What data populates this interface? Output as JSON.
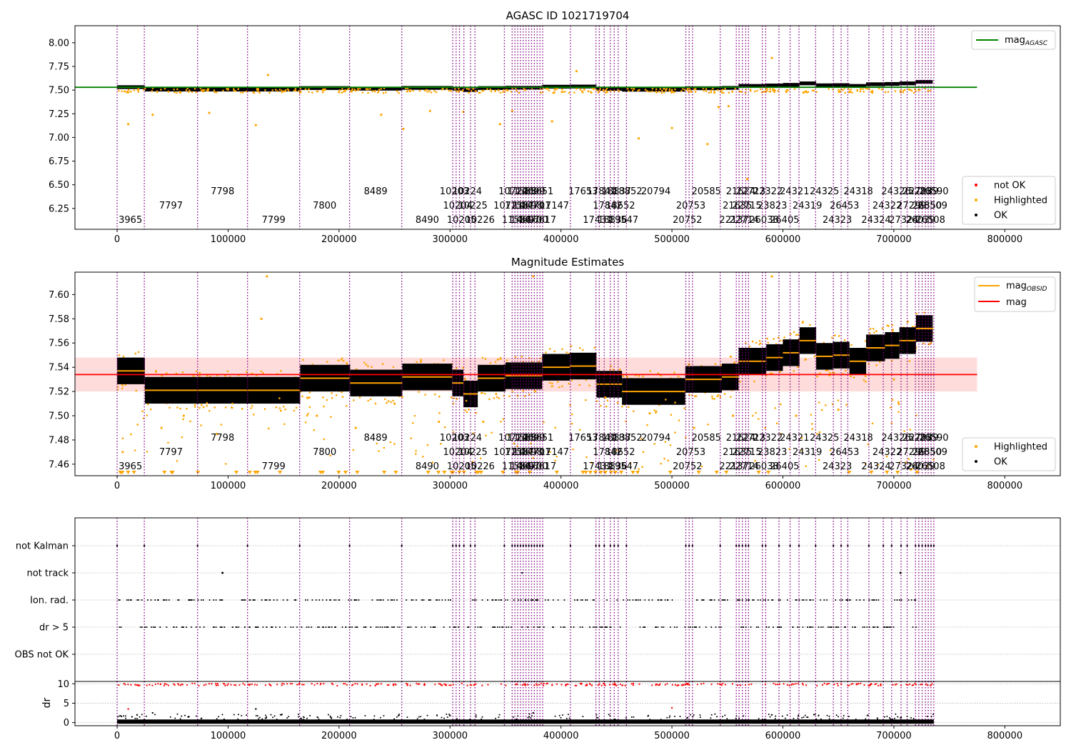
{
  "figure": {
    "chart_data": [
      {
        "type": "scatter",
        "title": "AGASC ID 1021719704",
        "xlabel": "",
        "ylabel": "",
        "xlim": [
          -38000,
          850000
        ],
        "ylim": [
          6.03,
          8.18
        ],
        "xticks": [
          0,
          100000,
          200000,
          300000,
          400000,
          500000,
          600000,
          700000,
          800000
        ],
        "xtick_labels": [
          "0",
          "100000",
          "200000",
          "300000",
          "400000",
          "500000",
          "600000",
          "700000",
          "800000"
        ],
        "yticks": [
          6.25,
          6.5,
          6.75,
          7.0,
          7.25,
          7.5,
          7.75,
          8.0
        ],
        "ytick_labels": [
          "6.25",
          "6.50",
          "6.75",
          "7.00",
          "7.25",
          "7.50",
          "7.75",
          "8.00"
        ],
        "reference_line": {
          "name": "mag_AGASC",
          "y": 7.53,
          "color": "#008000",
          "x_range": [
            -38000,
            775000
          ]
        },
        "series": [
          {
            "name": "not OK",
            "color": "#ff0000",
            "x": [],
            "y": []
          },
          {
            "name": "Highlighted",
            "color": "#ffa500",
            "x": [
              10000,
              32000,
              83000,
              125000,
              136000,
              238000,
              258000,
              282000,
              312000,
              345000,
              356000,
              392000,
              414000,
              470000,
              500000,
              532000,
              542000,
              551000,
              568000,
              590000
            ],
            "y": [
              7.14,
              7.24,
              7.26,
              7.13,
              7.66,
              7.24,
              7.09,
              7.28,
              7.27,
              7.14,
              7.28,
              7.17,
              7.7,
              6.99,
              7.1,
              6.93,
              7.32,
              7.33,
              6.56,
              7.84
            ]
          },
          {
            "name": "OK",
            "color": "#000000",
            "x": [],
            "y": []
          }
        ],
        "legend": {
          "placement": "upper right",
          "items": [
            "mag_AGASC"
          ]
        },
        "legend2": {
          "placement": "lower right",
          "items": [
            "not OK",
            "Highlighted",
            "OK"
          ]
        }
      },
      {
        "type": "scatter",
        "title": "Magnitude Estimates",
        "xlabel": "",
        "ylabel": "",
        "xlim": [
          -38000,
          850000
        ],
        "ylim": [
          7.4505,
          7.6185
        ],
        "xticks": [
          0,
          100000,
          200000,
          300000,
          400000,
          500000,
          600000,
          700000,
          800000
        ],
        "xtick_labels": [
          "0",
          "100000",
          "200000",
          "300000",
          "400000",
          "500000",
          "600000",
          "700000",
          "800000"
        ],
        "yticks": [
          7.46,
          7.48,
          7.5,
          7.52,
          7.54,
          7.56,
          7.58,
          7.6
        ],
        "ytick_labels": [
          "7.46",
          "7.48",
          "7.50",
          "7.52",
          "7.54",
          "7.56",
          "7.58",
          "7.60"
        ],
        "mag_line": {
          "name": "mag",
          "y": 7.534,
          "band": [
            7.52,
            7.548
          ],
          "color": "#ff0000",
          "x_range": [
            -38000,
            775000
          ]
        },
        "mag_obsid": {
          "name": "mag_OBSID",
          "color": "#ffa500",
          "segments": [
            {
              "x0": 0,
              "x1": 25000,
              "y": 7.537
            },
            {
              "x0": 25000,
              "x1": 73000,
              "y": 7.521
            },
            {
              "x0": 73000,
              "x1": 118000,
              "y": 7.521
            },
            {
              "x0": 118000,
              "x1": 165000,
              "y": 7.521
            },
            {
              "x0": 165000,
              "x1": 210000,
              "y": 7.531
            },
            {
              "x0": 210000,
              "x1": 257000,
              "y": 7.527
            },
            {
              "x0": 257000,
              "x1": 302000,
              "y": 7.532
            },
            {
              "x0": 302000,
              "x1": 312000,
              "y": 7.527
            },
            {
              "x0": 312000,
              "x1": 325000,
              "y": 7.518
            },
            {
              "x0": 325000,
              "x1": 350000,
              "y": 7.531
            },
            {
              "x0": 350000,
              "x1": 383000,
              "y": 7.533
            },
            {
              "x0": 383000,
              "x1": 408000,
              "y": 7.54
            },
            {
              "x0": 408000,
              "x1": 432000,
              "y": 7.541
            },
            {
              "x0": 432000,
              "x1": 455000,
              "y": 7.526
            },
            {
              "x0": 455000,
              "x1": 512000,
              "y": 7.52
            },
            {
              "x0": 512000,
              "x1": 545000,
              "y": 7.53
            },
            {
              "x0": 545000,
              "x1": 560000,
              "y": 7.532
            },
            {
              "x0": 560000,
              "x1": 585000,
              "y": 7.545
            },
            {
              "x0": 585000,
              "x1": 600000,
              "y": 7.548
            },
            {
              "x0": 600000,
              "x1": 615000,
              "y": 7.552
            },
            {
              "x0": 615000,
              "x1": 630000,
              "y": 7.562
            },
            {
              "x0": 630000,
              "x1": 645000,
              "y": 7.549
            },
            {
              "x0": 645000,
              "x1": 660000,
              "y": 7.55
            },
            {
              "x0": 660000,
              "x1": 675000,
              "y": 7.545
            },
            {
              "x0": 675000,
              "x1": 692000,
              "y": 7.556
            },
            {
              "x0": 692000,
              "x1": 705000,
              "y": 7.558
            },
            {
              "x0": 705000,
              "x1": 720000,
              "y": 7.562
            },
            {
              "x0": 720000,
              "x1": 735000,
              "y": 7.572
            }
          ]
        },
        "series": [
          {
            "name": "Highlighted",
            "color": "#ffa500",
            "x": [
              5000,
              40000,
              60000,
              90000,
              130000,
              135000,
              180000,
              215000,
              250000,
              290000,
              330000,
              375000,
              440000,
              480000,
              520000,
              555000,
              590000,
              612000,
              650000,
              700000
            ],
            "y": [
              7.47,
              7.49,
              7.5,
              7.485,
              7.58,
              7.615,
              7.5,
              7.49,
              7.51,
              7.495,
              7.495,
              7.615,
              7.515,
              7.502,
              7.49,
              7.5,
              7.615,
              7.5,
              7.505,
              7.53
            ]
          },
          {
            "name": "OK",
            "color": "#000000",
            "x": [],
            "y": []
          }
        ],
        "legend": {
          "placement": "upper right",
          "items": [
            "mag_OBSID",
            "mag"
          ]
        },
        "legend2": {
          "placement": "lower right",
          "items": [
            "Highlighted",
            "OK"
          ]
        }
      },
      {
        "type": "scatter",
        "title": "",
        "xlabel": "",
        "ylabel": "",
        "xlim": [
          -38000,
          850000
        ],
        "categories": [
          "not Kalman",
          "not track",
          "Ion. rad.",
          "dr > 5",
          "OBS not OK"
        ],
        "grid": true
      },
      {
        "type": "scatter",
        "title": "",
        "xlabel": "",
        "ylabel": "dr",
        "xlim": [
          -38000,
          850000
        ],
        "ylim": [
          -0.8,
          10.6
        ],
        "xticks": [
          0,
          100000,
          200000,
          300000,
          400000,
          500000,
          600000,
          700000,
          800000
        ],
        "xtick_labels": [
          "0",
          "100000",
          "200000",
          "300000",
          "400000",
          "500000",
          "600000",
          "700000",
          "800000"
        ],
        "yticks": [
          0,
          5,
          10
        ],
        "ytick_labels": [
          "0",
          "5",
          "10"
        ],
        "grid": true,
        "series": [
          {
            "name": "dr > 5",
            "color": "#ff0000",
            "x": [],
            "y": []
          },
          {
            "name": "dr",
            "color": "#000000",
            "x": [
              10000,
              18000,
              32000,
              125000,
              300000,
              375000,
              500000,
              590000
            ],
            "y": [
              3.5,
              2.0,
              2.5,
              3.5,
              1.8,
              2.5,
              3.8,
              2.0
            ]
          }
        ]
      }
    ],
    "obsid_boundaries": [
      0,
      24500,
      72500,
      117500,
      164500,
      209500,
      256500,
      302500,
      305500,
      308500,
      312500,
      318500,
      322500,
      349000,
      356000,
      358500,
      361000,
      363500,
      366000,
      368500,
      371000,
      373500,
      376000,
      378500,
      381000,
      383500,
      408500,
      431500,
      434500,
      439000,
      444500,
      448000,
      451500,
      459000,
      512500,
      515500,
      518500,
      543500,
      558000,
      560500,
      563500,
      566500,
      569000,
      581500,
      584500,
      596500,
      606500,
      614500,
      629500,
      645500,
      652500,
      658500,
      677500,
      690500,
      698000,
      706500,
      712000,
      719500,
      722500,
      725500,
      728500,
      731000,
      733500,
      736000
    ],
    "obsid_labels": [
      {
        "text": "3965",
        "x": 12000,
        "row": 3
      },
      {
        "text": "7797",
        "x": 48500,
        "row": 2
      },
      {
        "text": "7798",
        "x": 95000,
        "row": 1
      },
      {
        "text": "7799",
        "x": 141000,
        "row": 3
      },
      {
        "text": "7800",
        "x": 187000,
        "row": 2
      },
      {
        "text": "8489",
        "x": 233000,
        "row": 1
      },
      {
        "text": "8490",
        "x": 279500,
        "row": 3
      },
      {
        "text": "10203",
        "x": 304000,
        "row": 1
      },
      {
        "text": "10204",
        "x": 307000,
        "row": 2
      },
      {
        "text": "10205",
        "x": 310500,
        "row": 3
      },
      {
        "text": "10224",
        "x": 315500,
        "row": 1
      },
      {
        "text": "10225",
        "x": 320500,
        "row": 2
      },
      {
        "text": "10226",
        "x": 327000,
        "row": 3
      },
      {
        "text": "10721",
        "x": 352500,
        "row": 2
      },
      {
        "text": "10722",
        "x": 357000,
        "row": 1
      },
      {
        "text": "11586",
        "x": 360000,
        "row": 3
      },
      {
        "text": "11587",
        "x": 362500,
        "row": 2
      },
      {
        "text": "11588",
        "x": 365000,
        "row": 1
      },
      {
        "text": "14697",
        "x": 367500,
        "row": 3
      },
      {
        "text": "14698",
        "x": 370000,
        "row": 2
      },
      {
        "text": "14699",
        "x": 372500,
        "row": 1
      },
      {
        "text": "14700",
        "x": 375000,
        "row": 3
      },
      {
        "text": "14701",
        "x": 377500,
        "row": 2
      },
      {
        "text": "15651",
        "x": 380000,
        "row": 1
      },
      {
        "text": "16617",
        "x": 382500,
        "row": 3
      },
      {
        "text": "17147",
        "x": 394000,
        "row": 2
      },
      {
        "text": "17653",
        "x": 420000,
        "row": 1
      },
      {
        "text": "17431",
        "x": 433000,
        "row": 3
      },
      {
        "text": "17841",
        "x": 436500,
        "row": 1
      },
      {
        "text": "17842",
        "x": 442000,
        "row": 2
      },
      {
        "text": "18836",
        "x": 446500,
        "row": 3
      },
      {
        "text": "18837",
        "x": 450000,
        "row": 1
      },
      {
        "text": "18652",
        "x": 453500,
        "row": 2
      },
      {
        "text": "19547",
        "x": 456500,
        "row": 3
      },
      {
        "text": "18852",
        "x": 460000,
        "row": 1
      },
      {
        "text": "20794",
        "x": 485500,
        "row": 1
      },
      {
        "text": "20752",
        "x": 514000,
        "row": 3
      },
      {
        "text": "20753",
        "x": 517000,
        "row": 2
      },
      {
        "text": "20585",
        "x": 531000,
        "row": 1
      },
      {
        "text": "22137",
        "x": 556000,
        "row": 3
      },
      {
        "text": "21635",
        "x": 559000,
        "row": 2
      },
      {
        "text": "21624",
        "x": 562000,
        "row": 1
      },
      {
        "text": "22714",
        "x": 565000,
        "row": 3
      },
      {
        "text": "22715",
        "x": 567500,
        "row": 2
      },
      {
        "text": "22713",
        "x": 571000,
        "row": 1
      },
      {
        "text": "26038",
        "x": 583000,
        "row": 3
      },
      {
        "text": "23823",
        "x": 590500,
        "row": 2
      },
      {
        "text": "22322",
        "x": 586500,
        "row": 1
      },
      {
        "text": "26405",
        "x": 601500,
        "row": 3
      },
      {
        "text": "24321",
        "x": 610500,
        "row": 1
      },
      {
        "text": "24319",
        "x": 622000,
        "row": 2
      },
      {
        "text": "24325",
        "x": 637500,
        "row": 1
      },
      {
        "text": "24323",
        "x": 649000,
        "row": 3
      },
      {
        "text": "26453",
        "x": 655500,
        "row": 2
      },
      {
        "text": "24318",
        "x": 668000,
        "row": 1
      },
      {
        "text": "24324",
        "x": 684000,
        "row": 3
      },
      {
        "text": "24322",
        "x": 694000,
        "row": 2
      },
      {
        "text": "24326",
        "x": 702000,
        "row": 1
      },
      {
        "text": "27324",
        "x": 709000,
        "row": 3
      },
      {
        "text": "27299",
        "x": 716000,
        "row": 2
      },
      {
        "text": "25283",
        "x": 721000,
        "row": 1
      },
      {
        "text": "26039",
        "x": 724000,
        "row": 3
      },
      {
        "text": "27289",
        "x": 727000,
        "row": 1
      },
      {
        "text": "26350",
        "x": 730000,
        "row": 2
      },
      {
        "text": "26508",
        "x": 733000,
        "row": 3
      },
      {
        "text": "26509",
        "x": 735000,
        "row": 2
      },
      {
        "text": "26590",
        "x": 736000,
        "row": 1
      }
    ],
    "legend_labels": {
      "mag_agasc": "mag",
      "mag_agasc_sub": "AGASC",
      "mag_obsid": "mag",
      "mag_obsid_sub": "OBSID",
      "mag": "mag",
      "not_ok": "not OK",
      "highlighted": "Highlighted",
      "ok": "OK"
    },
    "colors": {
      "boundary": "#800080",
      "ok": "#000000",
      "highlighted": "#ffa500",
      "not_ok": "#ff0000",
      "agasc_line": "#008000",
      "mag_line": "#ff0000",
      "mag_band": "#ffdcdc",
      "obsid_line": "#ffa500"
    }
  }
}
